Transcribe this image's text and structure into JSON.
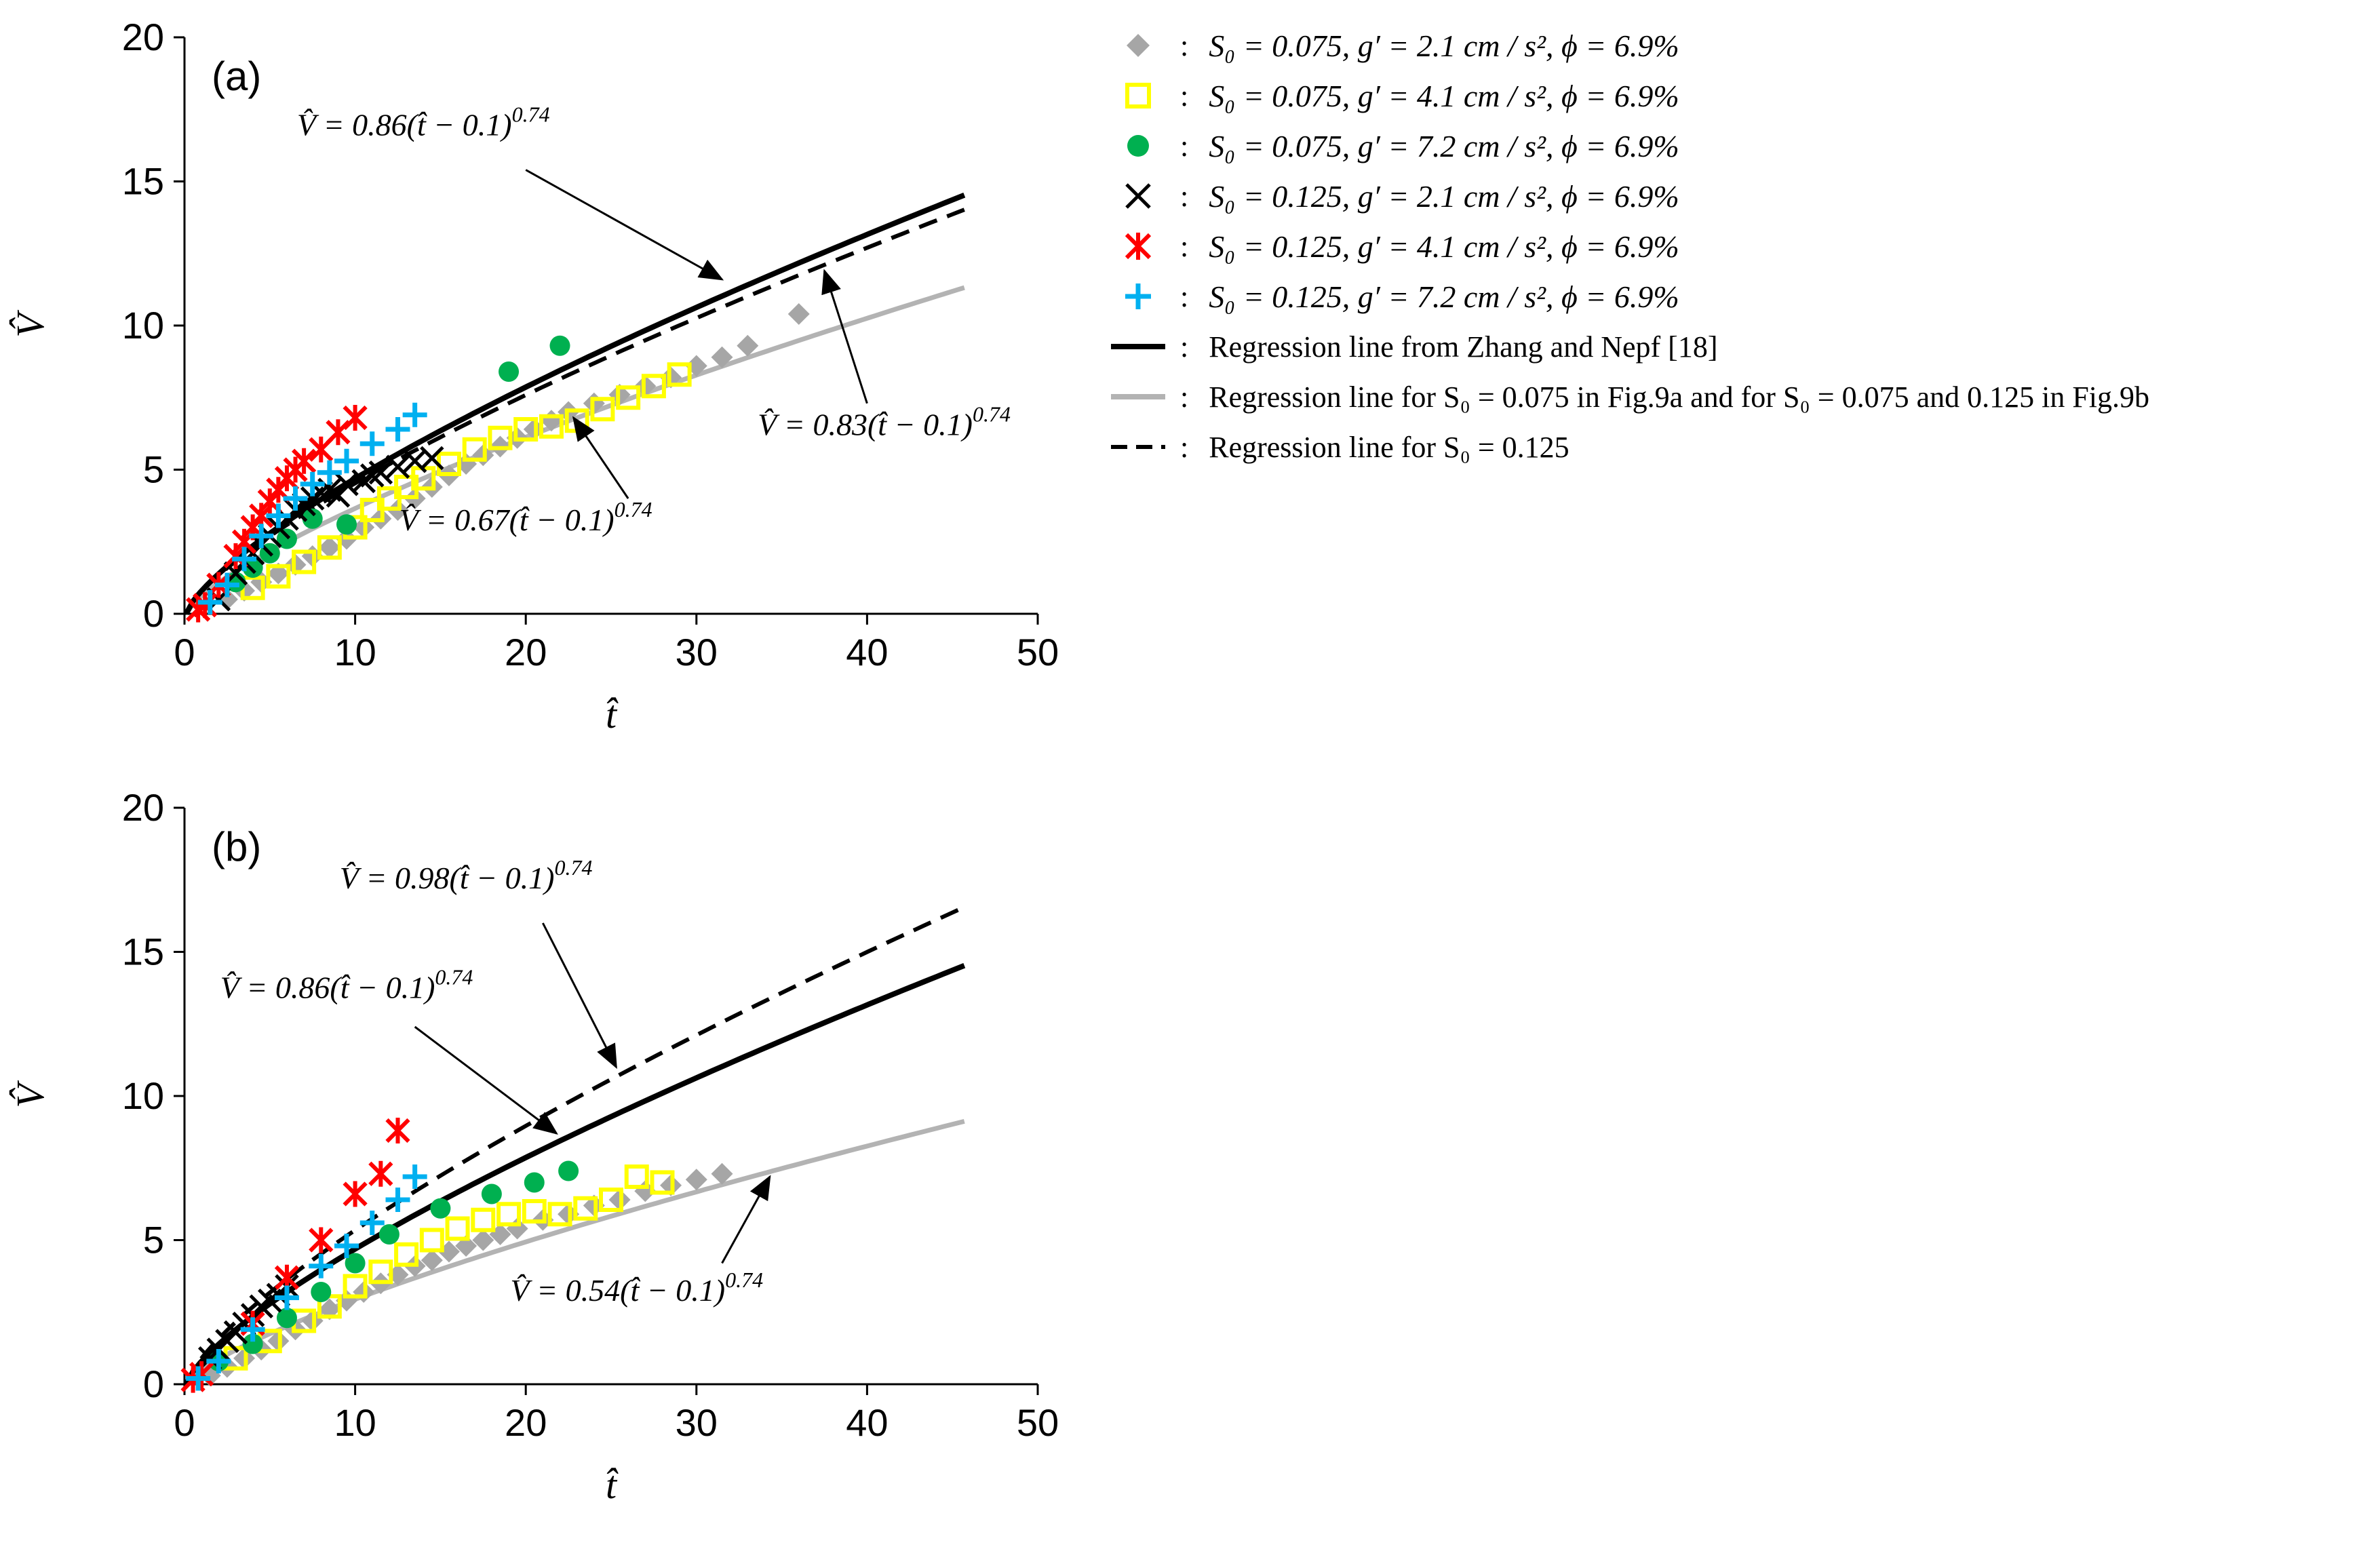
{
  "chart_data": [
    {
      "type": "scatter",
      "title": "(a)",
      "xlabel": "t̂",
      "ylabel": "V̂",
      "xlim": [
        0,
        50
      ],
      "ylim": [
        0,
        20
      ],
      "xticks": [
        0,
        10,
        20,
        30,
        40,
        50
      ],
      "yticks": [
        0,
        5,
        10,
        15,
        20
      ],
      "grid": false,
      "curves": [
        {
          "name": "regression-s0-0075-gray",
          "coef": 0.67,
          "offset": 0.1,
          "exponent": 0.74,
          "t_range": [
            0.1,
            46
          ],
          "color": "#b3b3b3",
          "dash": "",
          "width": 7
        },
        {
          "name": "regression-s0-0125-dashed",
          "coef": 0.83,
          "offset": 0.1,
          "exponent": 0.74,
          "t_range": [
            0.1,
            46
          ],
          "color": "#000000",
          "dash": "28,16",
          "width": 6
        },
        {
          "name": "regression-zhang-nepf-solid",
          "coef": 0.86,
          "offset": 0.1,
          "exponent": 0.74,
          "t_range": [
            0.1,
            46
          ],
          "color": "#000000",
          "dash": "",
          "width": 8
        }
      ],
      "annotations": [
        {
          "base": "V̂ = 0.86(t̂ − 0.1)",
          "sup": "0.74",
          "tx": 14,
          "ty": 16.6,
          "ax": 20,
          "ay": 15.4,
          "ex": 31.5,
          "ey": 11.6
        },
        {
          "base": "V̂ = 0.83(t̂ − 0.1)",
          "sup": "0.74",
          "tx": 41,
          "ty": 6.2,
          "ax": 40,
          "ay": 7.3,
          "ex": 37.5,
          "ey": 11.9
        },
        {
          "base": "V̂ = 0.67(t̂ − 0.1)",
          "sup": "0.74",
          "tx": 20,
          "ty": 2.9,
          "ax": 26,
          "ay": 4.0,
          "ex": 22.8,
          "ey": 6.8
        }
      ],
      "series": [
        {
          "name": "s0-0075-g-21",
          "marker": "diamond",
          "color": "#a6a6a6",
          "points": [
            [
              2.5,
              0.5
            ],
            [
              3.5,
              0.8
            ],
            [
              4.5,
              1.1
            ],
            [
              5.5,
              1.4
            ],
            [
              6.5,
              1.7
            ],
            [
              7.5,
              2.0
            ],
            [
              8.5,
              2.3
            ],
            [
              9.5,
              2.6
            ],
            [
              10.5,
              3.0
            ],
            [
              11.5,
              3.3
            ],
            [
              12.5,
              3.6
            ],
            [
              13.5,
              4.0
            ],
            [
              14.5,
              4.4
            ],
            [
              15.5,
              4.8
            ],
            [
              16.5,
              5.2
            ],
            [
              17.5,
              5.5
            ],
            [
              18.5,
              5.8
            ],
            [
              19.5,
              6.1
            ],
            [
              20.5,
              6.4
            ],
            [
              21.5,
              6.7
            ],
            [
              22.5,
              7.0
            ],
            [
              24,
              7.3
            ],
            [
              25.5,
              7.6
            ],
            [
              27,
              7.9
            ],
            [
              28.5,
              8.2
            ],
            [
              30,
              8.6
            ],
            [
              31.5,
              8.9
            ],
            [
              33,
              9.3
            ],
            [
              36,
              10.4
            ]
          ]
        },
        {
          "name": "s0-0075-g-41",
          "marker": "square-open",
          "color": "#ffff00",
          "points": [
            [
              4,
              0.9
            ],
            [
              5.5,
              1.3
            ],
            [
              7,
              1.8
            ],
            [
              8.5,
              2.3
            ],
            [
              10,
              3.0
            ],
            [
              11,
              3.6
            ],
            [
              12,
              4.0
            ],
            [
              13,
              4.4
            ],
            [
              14,
              4.7
            ],
            [
              15.5,
              5.2
            ],
            [
              17,
              5.7
            ],
            [
              18.5,
              6.1
            ],
            [
              20,
              6.4
            ],
            [
              21.5,
              6.5
            ],
            [
              23,
              6.7
            ],
            [
              24.5,
              7.1
            ],
            [
              26,
              7.5
            ],
            [
              27.5,
              7.9
            ],
            [
              29,
              8.3
            ]
          ]
        },
        {
          "name": "s0-0075-g-72",
          "marker": "circle",
          "color": "#00b050",
          "points": [
            [
              3,
              1.1
            ],
            [
              4,
              1.6
            ],
            [
              5,
              2.1
            ],
            [
              6,
              2.6
            ],
            [
              7.5,
              3.3
            ],
            [
              9.5,
              3.1
            ],
            [
              19,
              8.4
            ],
            [
              22,
              9.3
            ]
          ]
        },
        {
          "name": "s0-0125-g-21",
          "marker": "x",
          "color": "#000000",
          "points": [
            [
              2,
              0.5
            ],
            [
              3,
              1.4
            ],
            [
              3.5,
              1.8
            ],
            [
              4,
              2.1
            ],
            [
              4.5,
              2.4
            ],
            [
              5,
              2.7
            ],
            [
              5.5,
              3.0
            ],
            [
              6,
              3.3
            ],
            [
              6.5,
              3.6
            ],
            [
              7,
              3.8
            ],
            [
              7.5,
              4.0
            ],
            [
              8,
              4.2
            ],
            [
              8.5,
              4.3
            ],
            [
              9,
              4.1
            ],
            [
              9.5,
              4.5
            ],
            [
              10.5,
              4.6
            ],
            [
              11,
              4.8
            ],
            [
              11.5,
              4.9
            ],
            [
              12.5,
              5.1
            ],
            [
              13.5,
              5.3
            ],
            [
              14.5,
              5.4
            ]
          ]
        },
        {
          "name": "s0-0125-g-41",
          "marker": "asterisk",
          "color": "#ff0000",
          "points": [
            [
              0.8,
              0.15
            ],
            [
              1.2,
              0.3
            ],
            [
              2,
              1.0
            ],
            [
              3,
              2.0
            ],
            [
              3.5,
              2.5
            ],
            [
              4,
              3.0
            ],
            [
              4.5,
              3.4
            ],
            [
              5,
              3.9
            ],
            [
              5.5,
              4.3
            ],
            [
              6,
              4.7
            ],
            [
              6.5,
              5.0
            ],
            [
              7,
              5.3
            ],
            [
              8,
              5.7
            ],
            [
              9,
              6.3
            ],
            [
              10,
              6.8
            ]
          ]
        },
        {
          "name": "s0-0125-g-72",
          "marker": "plus",
          "color": "#00b0f0",
          "points": [
            [
              1.5,
              0.4
            ],
            [
              2.5,
              1.0
            ],
            [
              3.5,
              1.9
            ],
            [
              4.5,
              2.7
            ],
            [
              5.5,
              3.4
            ],
            [
              6.5,
              4.0
            ],
            [
              7.5,
              4.5
            ],
            [
              8.5,
              4.9
            ],
            [
              9.5,
              5.3
            ],
            [
              11,
              5.9
            ],
            [
              12.5,
              6.4
            ],
            [
              13.5,
              6.9
            ]
          ]
        }
      ]
    },
    {
      "type": "scatter",
      "title": "(b)",
      "xlabel": "t̂",
      "ylabel": "V̂",
      "xlim": [
        0,
        50
      ],
      "ylim": [
        0,
        20
      ],
      "xticks": [
        0,
        10,
        20,
        30,
        40,
        50
      ],
      "yticks": [
        0,
        5,
        10,
        15,
        20
      ],
      "grid": false,
      "curves": [
        {
          "name": "regression-s0-both-gray",
          "coef": 0.54,
          "offset": 0.1,
          "exponent": 0.74,
          "t_range": [
            0.1,
            46
          ],
          "color": "#b3b3b3",
          "dash": "",
          "width": 7
        },
        {
          "name": "regression-s0-0125-dashed",
          "coef": 0.98,
          "offset": 0.1,
          "exponent": 0.74,
          "t_range": [
            0.1,
            46
          ],
          "color": "#000000",
          "dash": "28,16",
          "width": 6
        },
        {
          "name": "regression-zhang-nepf-solid",
          "coef": 0.86,
          "offset": 0.1,
          "exponent": 0.74,
          "t_range": [
            0.1,
            46
          ],
          "color": "#000000",
          "dash": "",
          "width": 8
        }
      ],
      "annotations": [
        {
          "base": "V̂ = 0.98(t̂ − 0.1)",
          "sup": "0.74",
          "tx": 16.5,
          "ty": 17.2,
          "ax": 21,
          "ay": 16.0,
          "ex": 25.3,
          "ey": 11.0
        },
        {
          "base": "V̂ = 0.86(t̂ − 0.1)",
          "sup": "0.74",
          "tx": 9.5,
          "ty": 13.4,
          "ax": 13.5,
          "ay": 12.4,
          "ex": 21.8,
          "ey": 8.7
        },
        {
          "base": "V̂ = 0.54(t̂ − 0.1)",
          "sup": "0.74",
          "tx": 26.5,
          "ty": 2.9,
          "ax": 31.5,
          "ay": 4.2,
          "ex": 34.3,
          "ey": 7.2
        }
      ],
      "series": [
        {
          "name": "s0-0075-g-21",
          "marker": "diamond",
          "color": "#a6a6a6",
          "points": [
            [
              1.5,
              0.3
            ],
            [
              2.5,
              0.6
            ],
            [
              3.5,
              0.9
            ],
            [
              4.5,
              1.2
            ],
            [
              5.5,
              1.5
            ],
            [
              6.5,
              1.9
            ],
            [
              7.5,
              2.2
            ],
            [
              8.5,
              2.6
            ],
            [
              9.5,
              2.9
            ],
            [
              10.5,
              3.2
            ],
            [
              11.5,
              3.5
            ],
            [
              12.5,
              3.8
            ],
            [
              13.5,
              4.1
            ],
            [
              14.5,
              4.3
            ],
            [
              15.5,
              4.6
            ],
            [
              16.5,
              4.8
            ],
            [
              17.5,
              5.0
            ],
            [
              18.5,
              5.2
            ],
            [
              19.5,
              5.4
            ],
            [
              21,
              5.7
            ],
            [
              22.5,
              5.9
            ],
            [
              24,
              6.2
            ],
            [
              25.5,
              6.4
            ],
            [
              27,
              6.7
            ],
            [
              28.5,
              6.9
            ],
            [
              30,
              7.1
            ],
            [
              31.5,
              7.3
            ]
          ]
        },
        {
          "name": "s0-0075-g-41",
          "marker": "square-open",
          "color": "#ffff00",
          "points": [
            [
              3,
              0.9
            ],
            [
              5,
              1.5
            ],
            [
              7,
              2.2
            ],
            [
              8.5,
              2.7
            ],
            [
              10,
              3.4
            ],
            [
              11.5,
              3.9
            ],
            [
              13,
              4.5
            ],
            [
              14.5,
              5.0
            ],
            [
              16,
              5.4
            ],
            [
              17.5,
              5.7
            ],
            [
              19,
              5.9
            ],
            [
              20.5,
              6.0
            ],
            [
              22,
              5.9
            ],
            [
              23.5,
              6.1
            ],
            [
              25,
              6.4
            ],
            [
              26.5,
              7.2
            ],
            [
              28,
              7.0
            ]
          ]
        },
        {
          "name": "s0-0075-g-72",
          "marker": "circle",
          "color": "#00b050",
          "points": [
            [
              2,
              0.8
            ],
            [
              4,
              1.4
            ],
            [
              6,
              2.3
            ],
            [
              8,
              3.2
            ],
            [
              10,
              4.2
            ],
            [
              12,
              5.2
            ],
            [
              15,
              6.1
            ],
            [
              18,
              6.6
            ],
            [
              20.5,
              7.0
            ],
            [
              22.5,
              7.4
            ]
          ]
        },
        {
          "name": "s0-0125-g-21",
          "marker": "x",
          "color": "#000000",
          "points": [
            [
              1.5,
              0.9
            ],
            [
              2,
              1.2
            ],
            [
              2.5,
              1.5
            ],
            [
              3,
              1.8
            ],
            [
              3.5,
              2.1
            ],
            [
              4,
              2.4
            ],
            [
              4.5,
              2.7
            ],
            [
              5,
              2.9
            ],
            [
              5.5,
              3.1
            ],
            [
              6,
              3.4
            ]
          ]
        },
        {
          "name": "s0-0125-g-41",
          "marker": "asterisk",
          "color": "#ff0000",
          "points": [
            [
              0.5,
              0.15
            ],
            [
              1,
              0.35
            ],
            [
              4,
              2.1
            ],
            [
              6,
              3.7
            ],
            [
              8,
              5.0
            ],
            [
              10,
              6.6
            ],
            [
              11.5,
              7.3
            ],
            [
              12.5,
              8.8
            ]
          ]
        },
        {
          "name": "s0-0125-g-72",
          "marker": "plus",
          "color": "#00b0f0",
          "points": [
            [
              0.8,
              0.2
            ],
            [
              2,
              0.8
            ],
            [
              4,
              1.9
            ],
            [
              6,
              3.0
            ],
            [
              8,
              4.1
            ],
            [
              9.5,
              4.8
            ],
            [
              11,
              5.6
            ],
            [
              12.5,
              6.4
            ],
            [
              13.5,
              7.2
            ]
          ]
        }
      ]
    }
  ],
  "legend": {
    "separator": ":",
    "items": [
      {
        "marker": "diamond",
        "color": "#a6a6a6",
        "math": true,
        "text": "S₀ = 0.075, g′ = 2.1 cm / s², ϕ = 6.9%"
      },
      {
        "marker": "square-open",
        "color": "#ffff00",
        "math": true,
        "text": "S₀ = 0.075, g′ = 4.1 cm / s², ϕ = 6.9%"
      },
      {
        "marker": "circle",
        "color": "#00b050",
        "math": true,
        "text": "S₀ = 0.075, g′ = 7.2 cm / s², ϕ = 6.9%"
      },
      {
        "marker": "x",
        "color": "#000000",
        "math": true,
        "text": "S₀ = 0.125, g′ = 2.1 cm / s², ϕ = 6.9%"
      },
      {
        "marker": "asterisk",
        "color": "#ff0000",
        "math": true,
        "text": "S₀ = 0.125, g′ = 4.1 cm / s², ϕ = 6.9%"
      },
      {
        "marker": "plus",
        "color": "#00b0f0",
        "math": true,
        "text": "S₀ = 0.125, g′ = 7.2 cm / s², ϕ = 6.9%"
      },
      {
        "marker": "line-solid",
        "color": "#000000",
        "math": false,
        "text": "Regression line from Zhang and Nepf [18]"
      },
      {
        "marker": "line-solid",
        "color": "#b3b3b3",
        "math": false,
        "text": "Regression line for S₀ = 0.075 in Fig.9a and for S₀ = 0.075 and 0.125 in Fig.9b"
      },
      {
        "marker": "line-dashed",
        "color": "#000000",
        "math": false,
        "text": "Regression line for S₀ = 0.125"
      }
    ]
  }
}
